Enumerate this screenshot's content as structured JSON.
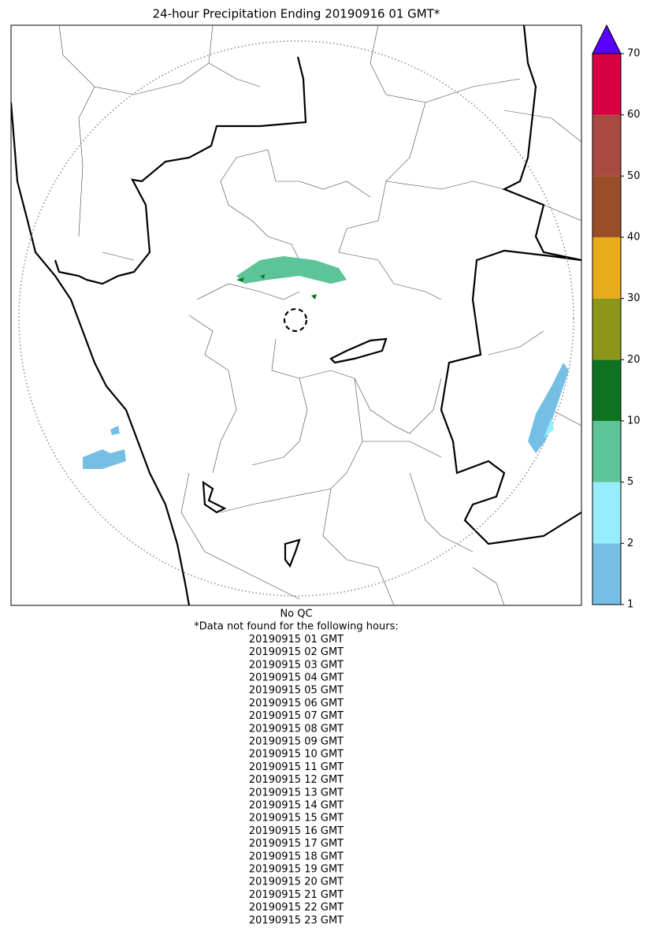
{
  "title": "24-hour Precipitation Ending 20190916 01 GMT*",
  "colorbar": {
    "levels": [
      1,
      2,
      5,
      10,
      20,
      30,
      40,
      50,
      60,
      70
    ],
    "colors": [
      "#74bfe3",
      "#96eefc",
      "#5dc49a",
      "#0e7320",
      "#8c9619",
      "#e8ab19",
      "#9b4d28",
      "#a94a42",
      "#d60043"
    ],
    "extend_color": "#5a00ff"
  },
  "notes": {
    "qc": "No QC",
    "missing_header": "*Data not found for the following hours:",
    "missing_hours": [
      "20190915 01 GMT",
      "20190915 02 GMT",
      "20190915 03 GMT",
      "20190915 04 GMT",
      "20190915 05 GMT",
      "20190915 06 GMT",
      "20190915 07 GMT",
      "20190915 08 GMT",
      "20190915 09 GMT",
      "20190915 10 GMT",
      "20190915 11 GMT",
      "20190915 12 GMT",
      "20190915 13 GMT",
      "20190915 14 GMT",
      "20190915 15 GMT",
      "20190915 16 GMT",
      "20190915 17 GMT",
      "20190915 18 GMT",
      "20190915 19 GMT",
      "20190915 20 GMT",
      "20190915 21 GMT",
      "20190915 22 GMT",
      "20190915 23 GMT"
    ]
  }
}
